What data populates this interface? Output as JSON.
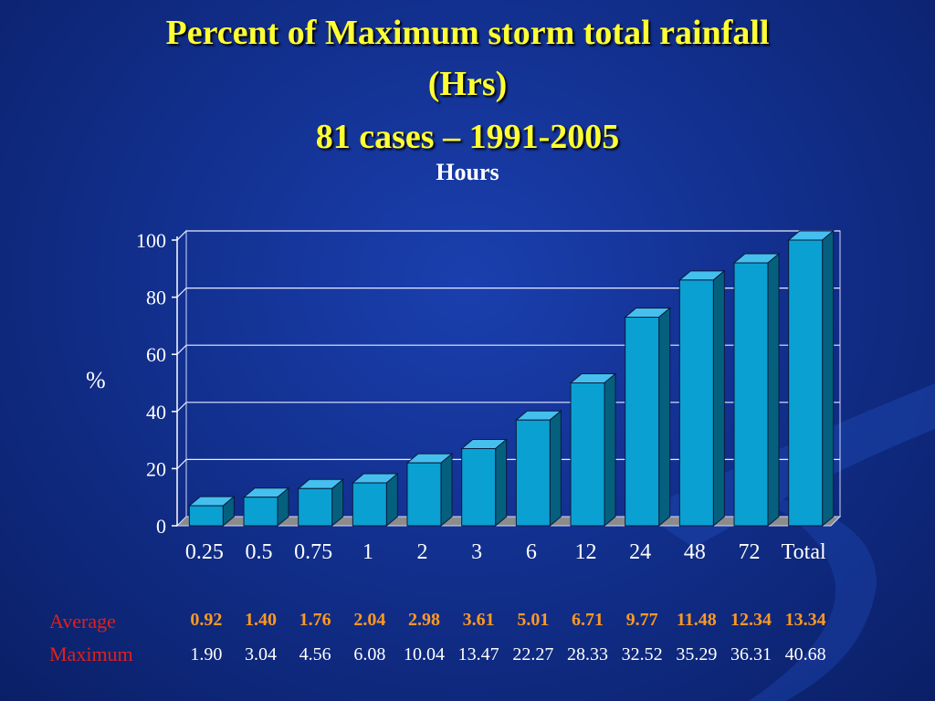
{
  "title": {
    "line1": "Percent of Maximum storm total rainfall",
    "line2": "(Hrs)",
    "line3": "81 cases – 1991-2005"
  },
  "chart_data": {
    "type": "bar",
    "title": "Hours",
    "xlabel": "",
    "ylabel": "%",
    "categories": [
      "0.25",
      "0.5",
      "0.75",
      "1",
      "2",
      "3",
      "6",
      "12",
      "24",
      "48",
      "72",
      "Total"
    ],
    "values": [
      7,
      10,
      13,
      15,
      22,
      27,
      37,
      50,
      73,
      86,
      92,
      100
    ],
    "ylim": [
      0,
      100
    ],
    "yticks": [
      "0",
      "20",
      "40",
      "60",
      "80",
      "100"
    ],
    "grid": true,
    "bar_color": "#0aa0d2"
  },
  "table": {
    "average_label": "Average",
    "maximum_label": "Maximum",
    "average": [
      "0.92",
      "1.40",
      "1.76",
      "2.04",
      "2.98",
      "3.61",
      "5.01",
      "6.71",
      "9.77",
      "11.48",
      "12.34",
      "13.34"
    ],
    "maximum": [
      "1.90",
      "3.04",
      "4.56",
      "6.08",
      "10.04",
      "13.47",
      "22.27",
      "28.33",
      "32.52",
      "35.29",
      "36.31",
      "40.68"
    ]
  }
}
